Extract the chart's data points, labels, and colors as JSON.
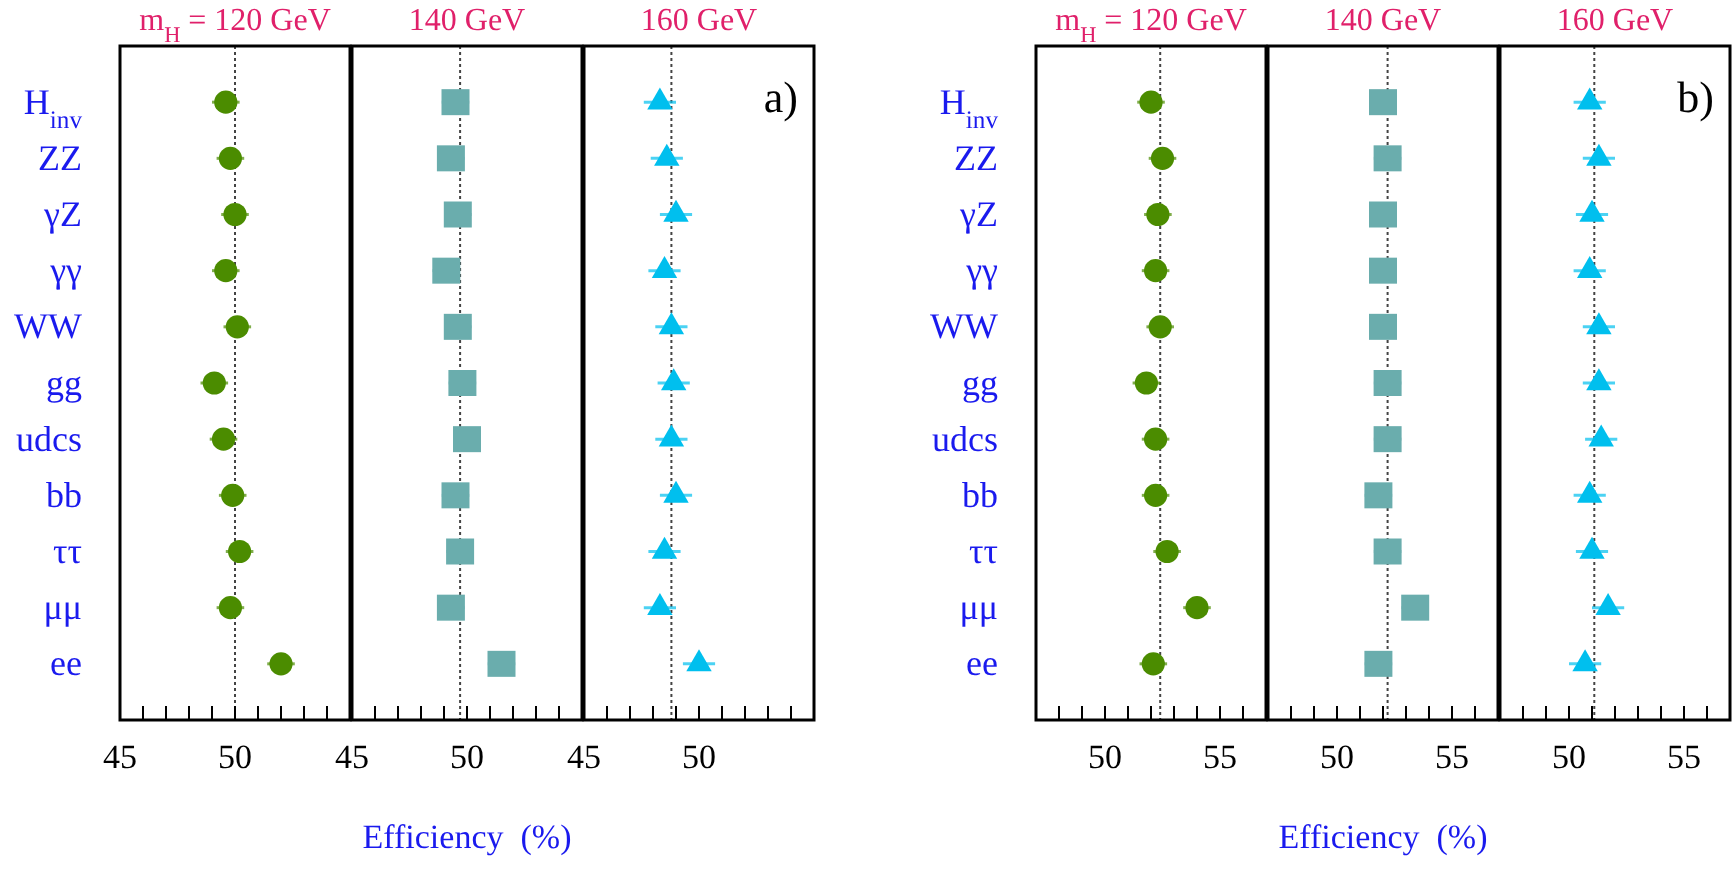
{
  "chart_data": [
    {
      "type": "scatter",
      "orientation": "horizontal",
      "title": "m$_{H}$ = 120 GeV",
      "categories": [
        "H$_{inv}$",
        "ZZ",
        "γZ",
        "γγ",
        "WW",
        "gg",
        "udcs",
        "bb",
        "ττ",
        "μμ",
        "ee"
      ],
      "xlim": [
        45,
        55
      ],
      "xticks": [
        45,
        {
          "value": 46,
          "label": null
        },
        {
          "value": 47,
          "label": null
        },
        {
          "value": 48,
          "label": null
        },
        {
          "value": 49,
          "label": null
        },
        50,
        {
          "value": 51,
          "label": null
        },
        {
          "value": 52,
          "label": null
        },
        {
          "value": 53,
          "label": null
        },
        {
          "value": 54,
          "label": null
        }
      ],
      "marker": "circle",
      "series": [
        {
          "color": "#4b8c00",
          "values": [
            49.6,
            49.8,
            50.0,
            49.6,
            50.1,
            49.1,
            49.5,
            49.9,
            50.2,
            49.8,
            52.0
          ],
          "errors": [
            0.6,
            0.6,
            0.6,
            0.6,
            0.6,
            0.6,
            0.6,
            0.6,
            0.6,
            0.6,
            0.6
          ]
        }
      ],
      "ref_lines": [
        {
          "axis": "x",
          "value": 50.0,
          "line_style": "dotted",
          "color": "#444444"
        }
      ]
    },
    {
      "type": "scatter",
      "orientation": "horizontal",
      "title": "140 GeV",
      "xlabel": "Efficiency  (%)",
      "tick_labels": "x",
      "xlim": [
        45,
        55
      ],
      "xticks": [
        45,
        {
          "value": 46,
          "label": null
        },
        {
          "value": 47,
          "label": null
        },
        {
          "value": 48,
          "label": null
        },
        {
          "value": 49,
          "label": null
        },
        50,
        {
          "value": 51,
          "label": null
        },
        {
          "value": 52,
          "label": null
        },
        {
          "value": 53,
          "label": null
        },
        {
          "value": 54,
          "label": null
        }
      ],
      "marker": "square",
      "series": [
        {
          "color": "#6aadad",
          "values": [
            49.5,
            49.3,
            49.6,
            49.1,
            49.6,
            49.8,
            50.0,
            49.5,
            49.7,
            49.3,
            51.5
          ],
          "errors": [
            0.6,
            0.6,
            0.6,
            0.6,
            0.6,
            0.6,
            0.6,
            0.6,
            0.6,
            0.6,
            0.6
          ]
        }
      ],
      "ref_lines": [
        {
          "axis": "x",
          "value": 49.7,
          "line_style": "dotted",
          "color": "#444444"
        }
      ]
    },
    {
      "type": "scatter",
      "orientation": "horizontal",
      "title": "160 GeV",
      "annotations": [
        "a)"
      ],
      "tick_labels": "x",
      "xlim": [
        45,
        55
      ],
      "xticks": [
        45,
        {
          "value": 46,
          "label": null
        },
        {
          "value": 47,
          "label": null
        },
        {
          "value": 48,
          "label": null
        },
        {
          "value": 49,
          "label": null
        },
        50,
        {
          "value": 51,
          "label": null
        },
        {
          "value": 52,
          "label": null
        },
        {
          "value": 53,
          "label": null
        },
        {
          "value": 54,
          "label": null
        }
      ],
      "marker": "triangle",
      "series": [
        {
          "color": "#00bfee",
          "values": [
            48.3,
            48.6,
            49.0,
            48.5,
            48.8,
            48.9,
            48.8,
            49.0,
            48.5,
            48.3,
            50.0
          ],
          "errors": [
            0.7,
            0.7,
            0.7,
            0.7,
            0.7,
            0.7,
            0.7,
            0.7,
            0.7,
            0.7,
            0.7
          ]
        }
      ],
      "ref_lines": [
        {
          "axis": "x",
          "value": 48.8,
          "line_style": "dotted",
          "color": "#444444"
        }
      ]
    },
    {
      "type": "scatter",
      "orientation": "horizontal",
      "title": "m$_{H}$ = 120 GeV",
      "categories": [
        "H$_{inv}$",
        "ZZ",
        "γZ",
        "γγ",
        "WW",
        "gg",
        "udcs",
        "bb",
        "ττ",
        "μμ",
        "ee"
      ],
      "xlim": [
        47,
        57
      ],
      "xticks": [
        {
          "value": 48,
          "label": null
        },
        {
          "value": 49,
          "label": null
        },
        50,
        {
          "value": 51,
          "label": null
        },
        {
          "value": 52,
          "label": null
        },
        {
          "value": 53,
          "label": null
        },
        {
          "value": 54,
          "label": null
        },
        55,
        {
          "value": 56,
          "label": null
        }
      ],
      "marker": "circle",
      "series": [
        {
          "color": "#4b8c00",
          "values": [
            52.0,
            52.5,
            52.3,
            52.2,
            52.4,
            51.8,
            52.2,
            52.2,
            52.7,
            54.0,
            52.1
          ],
          "errors": [
            0.6,
            0.6,
            0.6,
            0.6,
            0.6,
            0.6,
            0.6,
            0.6,
            0.6,
            0.6,
            0.6
          ]
        }
      ],
      "ref_lines": [
        {
          "axis": "x",
          "value": 52.4,
          "line_style": "dotted",
          "color": "#444444"
        }
      ]
    },
    {
      "type": "scatter",
      "orientation": "horizontal",
      "title": "140 GeV",
      "xlabel": "Efficiency  (%)",
      "tick_labels": "x",
      "xlim": [
        47,
        57
      ],
      "xticks": [
        {
          "value": 48,
          "label": null
        },
        {
          "value": 49,
          "label": null
        },
        50,
        {
          "value": 51,
          "label": null
        },
        {
          "value": 52,
          "label": null
        },
        {
          "value": 53,
          "label": null
        },
        {
          "value": 54,
          "label": null
        },
        55,
        {
          "value": 56,
          "label": null
        }
      ],
      "marker": "square",
      "series": [
        {
          "color": "#6aadad",
          "values": [
            52.0,
            52.2,
            52.0,
            52.0,
            52.0,
            52.2,
            52.2,
            51.8,
            52.2,
            53.4,
            51.8
          ],
          "errors": [
            0.6,
            0.6,
            0.6,
            0.6,
            0.6,
            0.6,
            0.6,
            0.6,
            0.6,
            0.6,
            0.6
          ]
        }
      ],
      "ref_lines": [
        {
          "axis": "x",
          "value": 52.2,
          "line_style": "dotted",
          "color": "#444444"
        }
      ]
    },
    {
      "type": "scatter",
      "orientation": "horizontal",
      "title": "160 GeV",
      "annotations": [
        "b)"
      ],
      "tick_labels": "x",
      "xlim": [
        47,
        57
      ],
      "xticks": [
        {
          "value": 48,
          "label": null
        },
        {
          "value": 49,
          "label": null
        },
        50,
        {
          "value": 51,
          "label": null
        },
        {
          "value": 52,
          "label": null
        },
        {
          "value": 53,
          "label": null
        },
        {
          "value": 54,
          "label": null
        },
        55,
        {
          "value": 56,
          "label": null
        }
      ],
      "marker": "triangle",
      "series": [
        {
          "color": "#00bfee",
          "values": [
            50.9,
            51.3,
            51.0,
            50.9,
            51.3,
            51.3,
            51.4,
            50.9,
            51.0,
            51.7,
            50.7
          ],
          "errors": [
            0.7,
            0.7,
            0.7,
            0.7,
            0.7,
            0.7,
            0.7,
            0.7,
            0.7,
            0.7,
            0.7
          ]
        }
      ],
      "ref_lines": [
        {
          "axis": "x",
          "value": 51.1,
          "line_style": "dotted",
          "color": "#444444"
        }
      ]
    }
  ]
}
